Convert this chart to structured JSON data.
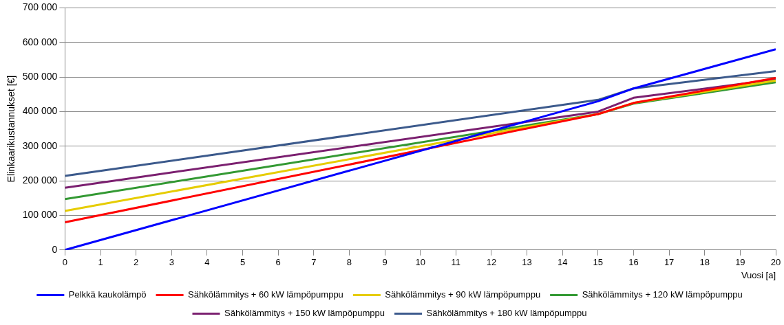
{
  "chart_data": {
    "type": "line",
    "xlabel": "Vuosi [a]",
    "ylabel": "Elinkaarikustannukset [€]",
    "x": [
      0,
      15,
      16,
      20
    ],
    "series": [
      {
        "name": "Pelkkä kaukolämpö",
        "color": "#0000ff",
        "values": [
          0,
          430000,
          467000,
          580000
        ]
      },
      {
        "name": "Sähkölämmitys + 60 kW lämpöpumppu",
        "color": "#ff0000",
        "values": [
          80000,
          393000,
          425000,
          497000
        ]
      },
      {
        "name": "Sähkölämmitys + 90 kW lämpöpumppu",
        "color": "#e6cc00",
        "values": [
          113000,
          393000,
          425000,
          490000
        ]
      },
      {
        "name": "Sähkölämmitys + 120 kW lämpöpumppu",
        "color": "#339933",
        "values": [
          147000,
          393000,
          423000,
          485000
        ]
      },
      {
        "name": "Sähkölämmitys + 150 kW lämpöpumppu",
        "color": "#7b2070",
        "values": [
          180000,
          400000,
          440000,
          493000
        ]
      },
      {
        "name": "Sähkölämmitys + 180 kW lämpöpumppu",
        "color": "#3c5a8c",
        "values": [
          214000,
          434000,
          467000,
          517000
        ]
      }
    ],
    "xlim": [
      0,
      20
    ],
    "xticks": [
      0,
      1,
      2,
      3,
      4,
      5,
      6,
      7,
      8,
      9,
      10,
      11,
      12,
      13,
      14,
      15,
      16,
      17,
      18,
      19,
      20
    ],
    "ylim": [
      0,
      700000
    ],
    "yticks": [
      0,
      {
        "value": 100000,
        "label": "100 000"
      },
      {
        "value": 200000,
        "label": "200 000"
      },
      {
        "value": 300000,
        "label": "300 000"
      },
      {
        "value": 400000,
        "label": "400 000"
      },
      {
        "value": 500000,
        "label": "500 000"
      },
      {
        "value": 600000,
        "label": "600 000"
      },
      {
        "value": 700000,
        "label": "700 000"
      }
    ],
    "grid": "y",
    "legend": "bottom",
    "marker": "none",
    "line_style": "solid"
  }
}
